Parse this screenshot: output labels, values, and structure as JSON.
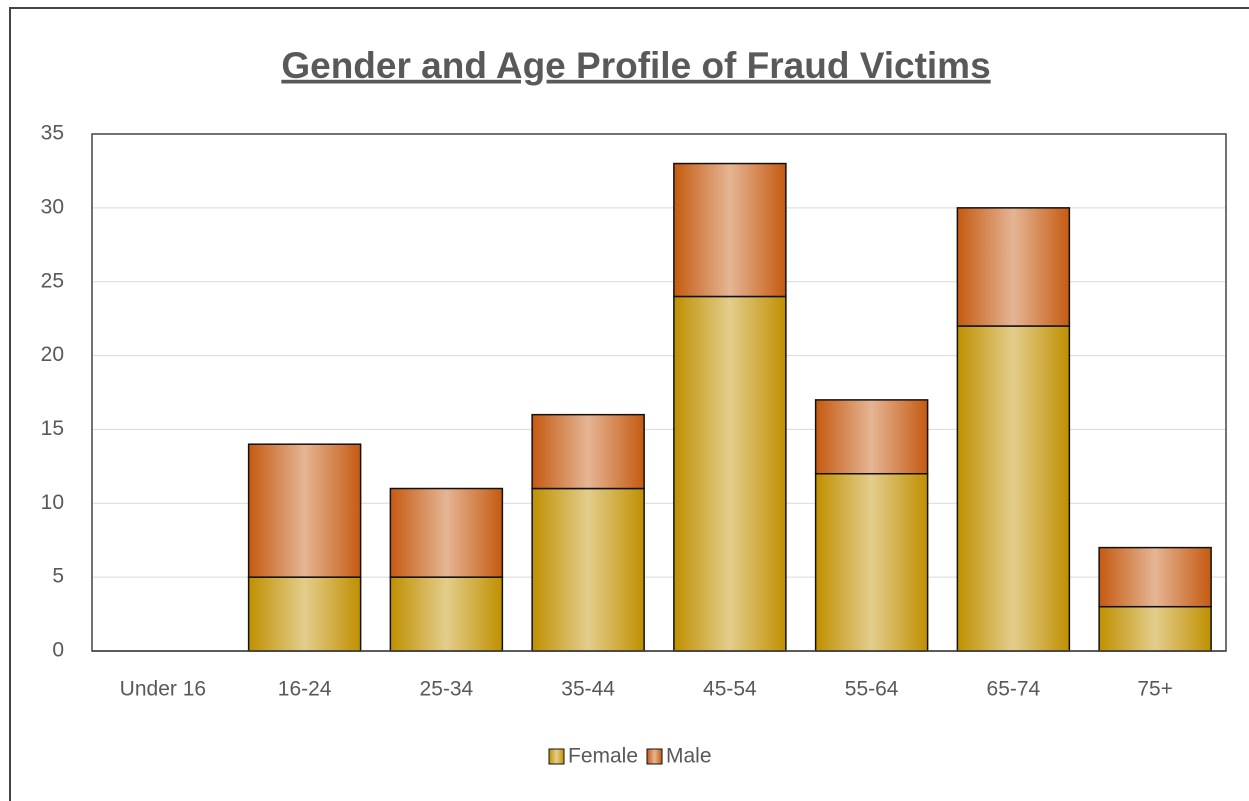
{
  "chart_data": {
    "type": "stacked_bar",
    "title": "Gender and Age Profile of Fraud Victims",
    "categories": [
      "Under 16",
      "16-24",
      "25-34",
      "35-44",
      "45-54",
      "55-64",
      "65-74",
      "75+"
    ],
    "series": [
      {
        "name": "Female",
        "color": "#c09000",
        "values": [
          0,
          5,
          5,
          11,
          24,
          12,
          22,
          3
        ]
      },
      {
        "name": "Male",
        "color": "#c55a11",
        "values": [
          0,
          9,
          6,
          5,
          9,
          5,
          8,
          4
        ]
      }
    ],
    "ylim": [
      0,
      35
    ],
    "yticks": [
      0,
      5,
      10,
      15,
      20,
      25,
      30,
      35
    ],
    "grid": true,
    "legend": "bottom"
  }
}
